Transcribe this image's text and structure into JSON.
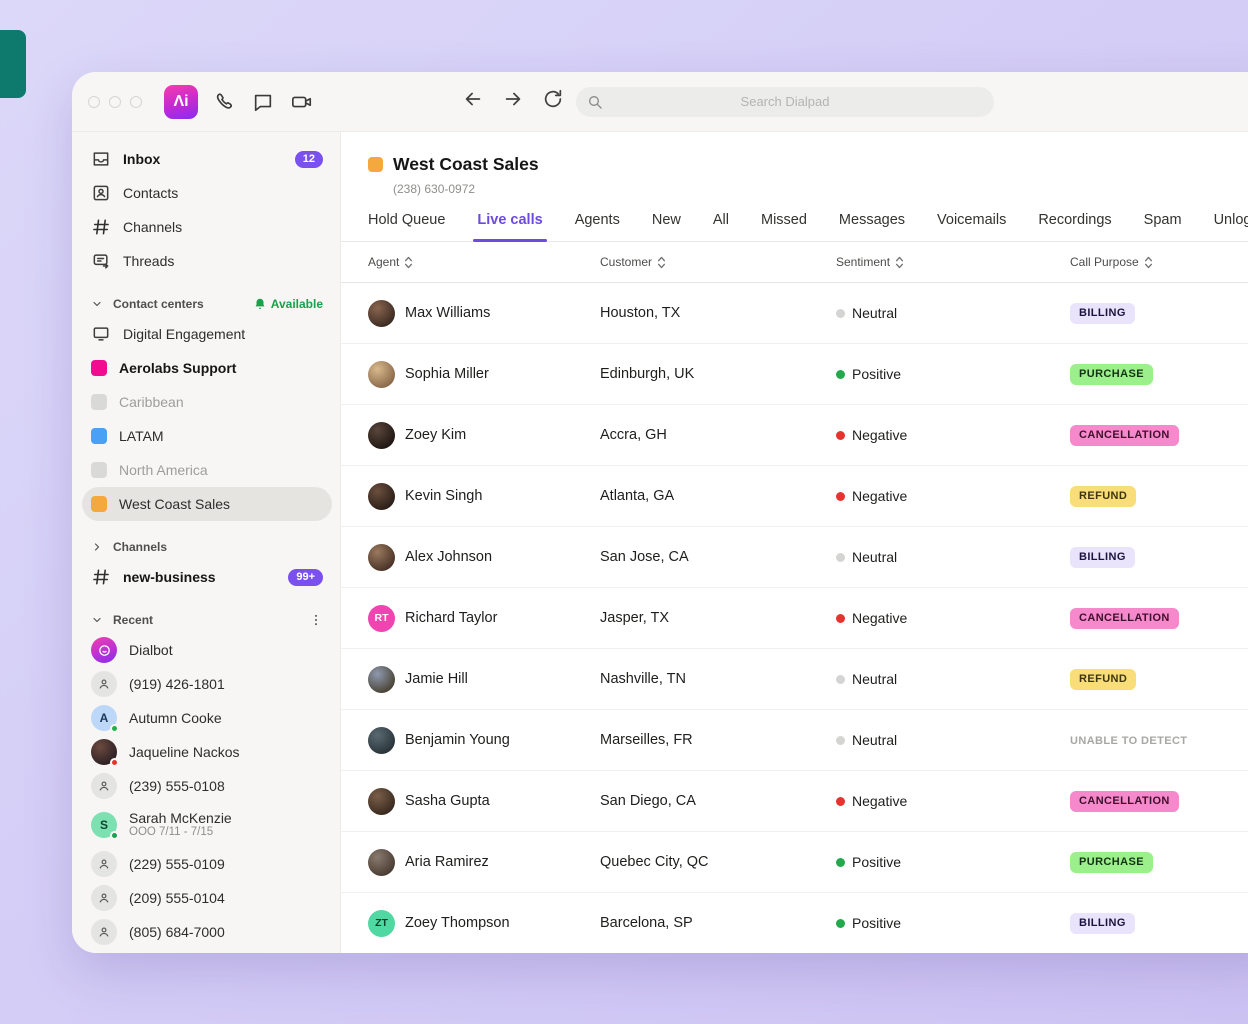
{
  "accent_colors": {
    "brand_purple": "#7a50ee",
    "active_tab": "#6d4ae0",
    "available_green": "#18a24b",
    "positive": "#23a84c",
    "negative": "#e8322e",
    "neutral": "#d4d4d2"
  },
  "topbar": {
    "search_placeholder": "Search Dialpad",
    "logo_glyph": "Λi"
  },
  "sidebar": {
    "nav": [
      {
        "label": "Inbox",
        "icon": "inbox",
        "bold": true,
        "badge": "12"
      },
      {
        "label": "Contacts",
        "icon": "contact-card"
      },
      {
        "label": "Channels",
        "icon": "hash"
      },
      {
        "label": "Threads",
        "icon": "threads"
      }
    ],
    "contact_centers": {
      "header": "Contact centers",
      "status": "Available",
      "items": [
        {
          "label": "Digital Engagement",
          "icon": "monitor"
        },
        {
          "label": "Aerolabs Support",
          "swatch": "#f20d90",
          "bold": true
        },
        {
          "label": "Caribbean",
          "swatch": "#d9d9d7",
          "muted": true
        },
        {
          "label": "LATAM",
          "swatch": "#4aa0f5"
        },
        {
          "label": "North America",
          "swatch": "#d9d9d7",
          "muted": true
        },
        {
          "label": "West Coast Sales",
          "swatch": "#f5a83d",
          "selected": true
        }
      ]
    },
    "channels_section": {
      "header": "Channels",
      "items": [
        {
          "label": "new-business",
          "icon": "hash",
          "bold": true,
          "badge": "99+"
        }
      ]
    },
    "recent": {
      "header": "Recent",
      "items": [
        {
          "label": "Dialbot",
          "avatar": {
            "type": "dialbot"
          }
        },
        {
          "label": "(919) 426-1801",
          "avatar": {
            "type": "person"
          }
        },
        {
          "label": "Autumn Cooke",
          "avatar": {
            "type": "initials",
            "text": "A",
            "bg": "#bcd7f7",
            "fg": "#1d3557",
            "presence": "#21b14c"
          }
        },
        {
          "label": "Jaqueline Nackos",
          "avatar": {
            "type": "photo",
            "c1": "#6b4a3f",
            "c2": "#2e2024",
            "presence": "#e8322e"
          }
        },
        {
          "label": "(239) 555-0108",
          "avatar": {
            "type": "person"
          }
        },
        {
          "label": "Sarah McKenzie",
          "sub": "OOO 7/11 - 7/15",
          "avatar": {
            "type": "initials",
            "text": "S",
            "bg": "#7ce0b0",
            "fg": "#0f4430",
            "presence": "#1d9e55"
          }
        },
        {
          "label": "(229) 555-0109",
          "avatar": {
            "type": "person"
          }
        },
        {
          "label": "(209) 555-0104",
          "avatar": {
            "type": "person"
          }
        },
        {
          "label": "(805) 684-7000",
          "avatar": {
            "type": "person"
          }
        }
      ]
    }
  },
  "main": {
    "title": "West Coast Sales",
    "phone": "(238) 630-0972",
    "tabs": [
      "Hold Queue",
      "Live calls",
      "Agents",
      "New",
      "All",
      "Missed",
      "Messages",
      "Voicemails",
      "Recordings",
      "Spam",
      "Unlogged"
    ],
    "active_tab": "Live calls",
    "table": {
      "columns": [
        "Agent",
        "Customer",
        "Sentiment",
        "Call Purpose"
      ],
      "rows": [
        {
          "agent": "Max Williams",
          "avatar": {
            "type": "photo",
            "c1": "#8a6550",
            "c2": "#3c2b22"
          },
          "customer": "Houston, TX",
          "sentiment": "Neutral",
          "purpose": "BILLING",
          "purpose_style": "billing"
        },
        {
          "agent": "Sophia Miller",
          "avatar": {
            "type": "photo",
            "c1": "#d8b98c",
            "c2": "#8a6a4a"
          },
          "customer": "Edinburgh, UK",
          "sentiment": "Positive",
          "purpose": "PURCHASE",
          "purpose_style": "purchase"
        },
        {
          "agent": "Zoey Kim",
          "avatar": {
            "type": "photo",
            "c1": "#5a463b",
            "c2": "#1f1713"
          },
          "customer": "Accra, GH",
          "sentiment": "Negative",
          "purpose": "CANCELLATION",
          "purpose_style": "cancellation"
        },
        {
          "agent": "Kevin Singh",
          "avatar": {
            "type": "photo",
            "c1": "#6b4f3e",
            "c2": "#2c1f18"
          },
          "customer": "Atlanta, GA",
          "sentiment": "Negative",
          "purpose": "REFUND",
          "purpose_style": "refund"
        },
        {
          "agent": "Alex Johnson",
          "avatar": {
            "type": "photo",
            "c1": "#9a7a5e",
            "c2": "#4a3328"
          },
          "customer": "San Jose, CA",
          "sentiment": "Neutral",
          "purpose": "BILLING",
          "purpose_style": "billing"
        },
        {
          "agent": "Richard Taylor",
          "avatar": {
            "type": "initials",
            "text": "RT",
            "bg": "#f044b0",
            "fg": "#ffffff"
          },
          "customer": "Jasper, TX",
          "sentiment": "Negative",
          "purpose": "CANCELLATION",
          "purpose_style": "cancellation"
        },
        {
          "agent": "Jamie Hill",
          "avatar": {
            "type": "photo",
            "c1": "#8f9ab0",
            "c2": "#4a4436"
          },
          "customer": "Nashville, TN",
          "sentiment": "Neutral",
          "purpose": "REFUND",
          "purpose_style": "refund"
        },
        {
          "agent": "Benjamin Young",
          "avatar": {
            "type": "photo",
            "c1": "#5a6a72",
            "c2": "#2a343a"
          },
          "customer": "Marseilles, FR",
          "sentiment": "Neutral",
          "purpose": "UNABLE TO DETECT",
          "purpose_style": "unable"
        },
        {
          "agent": "Sasha Gupta",
          "avatar": {
            "type": "photo",
            "c1": "#7a5f4a",
            "c2": "#3a2a1f"
          },
          "customer": "San Diego, CA",
          "sentiment": "Negative",
          "purpose": "CANCELLATION",
          "purpose_style": "cancellation"
        },
        {
          "agent": "Aria Ramirez",
          "avatar": {
            "type": "photo",
            "c1": "#8a7a6e",
            "c2": "#4a3d33"
          },
          "customer": "Quebec City, QC",
          "sentiment": "Positive",
          "purpose": "PURCHASE",
          "purpose_style": "purchase"
        },
        {
          "agent": "Zoey Thompson",
          "avatar": {
            "type": "initials",
            "text": "ZT",
            "bg": "#4fd8a2",
            "fg": "#0e3d2a"
          },
          "customer": "Barcelona, SP",
          "sentiment": "Positive",
          "purpose": "BILLING",
          "purpose_style": "billing"
        }
      ]
    }
  }
}
